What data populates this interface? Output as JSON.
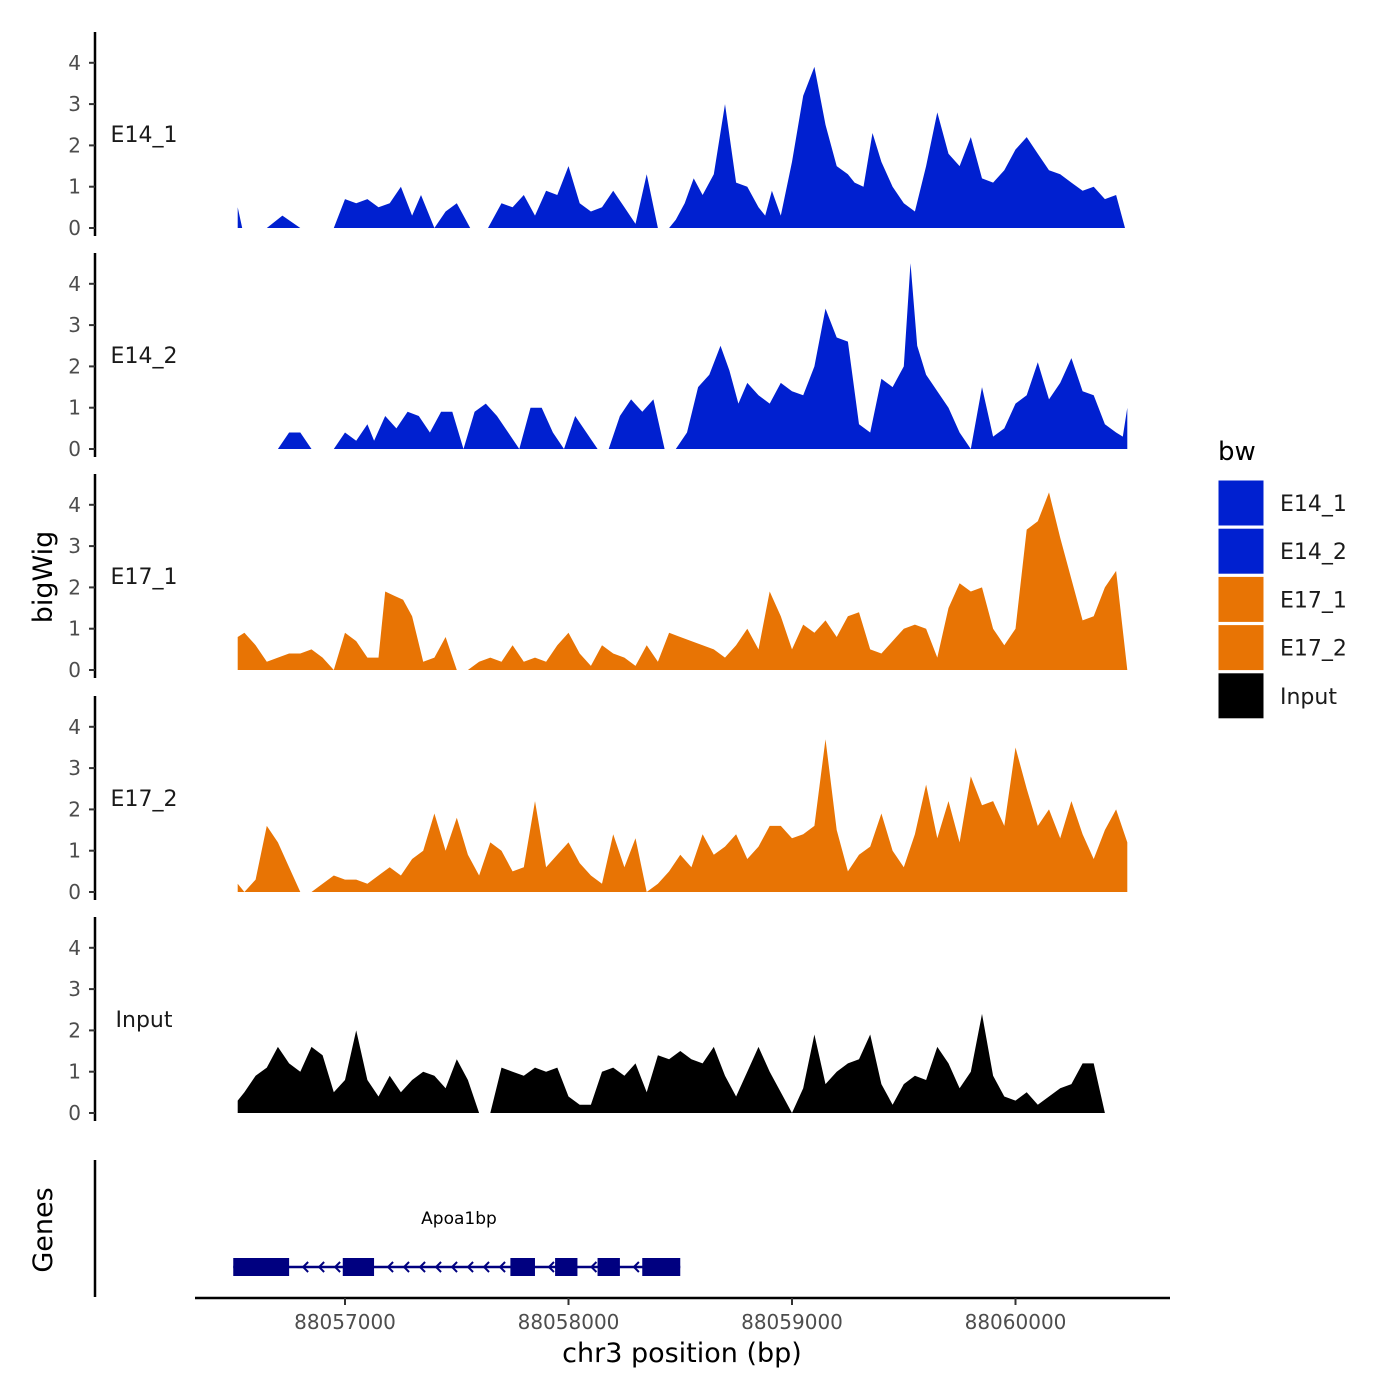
{
  "chart_data": {
    "type": "area",
    "title": "",
    "xlabel": "chr3 position (bp)",
    "ylabel": "bigWig",
    "genes_label": "Genes",
    "x_ticks": [
      88057000,
      88058000,
      88059000,
      88060000
    ],
    "x_tick_labels": [
      "88057000",
      "88058000",
      "88059000",
      "88060000"
    ],
    "xlim": [
      88056300,
      88060700
    ],
    "ylim": [
      0,
      4.6
    ],
    "y_ticks": [
      0,
      1,
      2,
      3,
      4
    ],
    "y_tick_labels": [
      "0",
      "1",
      "2",
      "3",
      "4"
    ],
    "legend": {
      "title": "bw",
      "position": "right",
      "entries": [
        {
          "label": "E14_1",
          "color": "#0020d0"
        },
        {
          "label": "E14_2",
          "color": "#0020d0"
        },
        {
          "label": "E17_1",
          "color": "#e87404"
        },
        {
          "label": "E17_2",
          "color": "#e87404"
        },
        {
          "label": "Input",
          "color": "#000000"
        }
      ]
    },
    "series": [
      {
        "name": "E14_1",
        "label": "E14_1",
        "color": "#0020d0",
        "x": [
          88056520,
          88056540,
          88056650,
          88056720,
          88056800,
          88056870,
          88056950,
          88057000,
          88057050,
          88057100,
          88057150,
          88057200,
          88057250,
          88057300,
          88057340,
          88057400,
          88057450,
          88057500,
          88057560,
          88057600,
          88057640,
          88057700,
          88057750,
          88057800,
          88057850,
          88057900,
          88057950,
          88058000,
          88058050,
          88058100,
          88058150,
          88058200,
          88058250,
          88058300,
          88058350,
          88058400,
          88058450,
          88058480,
          88058520,
          88058560,
          88058600,
          88058650,
          88058700,
          88058750,
          88058800,
          88058850,
          88058880,
          88058910,
          88058950,
          88059000,
          88059050,
          88059100,
          88059150,
          88059200,
          88059250,
          88059280,
          88059320,
          88059360,
          88059400,
          88059450,
          88059500,
          88059550,
          88059600,
          88059650,
          88059700,
          88059750,
          88059800,
          88059850,
          88059900,
          88059950,
          88060000,
          88060050,
          88060100,
          88060150,
          88060200,
          88060250,
          88060300,
          88060350,
          88060400,
          88060450,
          88060490,
          88060500
        ],
        "y": [
          0.5,
          0,
          0,
          0.3,
          0,
          0,
          0,
          0.7,
          0.6,
          0.7,
          0.5,
          0.6,
          1.0,
          0.3,
          0.8,
          0,
          0.4,
          0.6,
          0,
          0,
          0,
          0.6,
          0.5,
          0.8,
          0.3,
          0.9,
          0.8,
          1.5,
          0.6,
          0.4,
          0.5,
          0.9,
          0.5,
          0.1,
          1.3,
          0,
          0,
          0.2,
          0.6,
          1.2,
          0.8,
          1.3,
          3.0,
          1.1,
          1.0,
          0.5,
          0.3,
          0.9,
          0.3,
          1.6,
          3.2,
          3.9,
          2.5,
          1.5,
          1.3,
          1.1,
          1.0,
          2.3,
          1.6,
          1.0,
          0.6,
          0.4,
          1.5,
          2.8,
          1.8,
          1.5,
          2.2,
          1.2,
          1.1,
          1.4,
          1.9,
          2.2,
          1.8,
          1.4,
          1.3,
          1.1,
          0.9,
          1.0,
          0.7,
          0.8,
          0,
          0
        ],
        "x_start": 88056520,
        "x_end": 88060500
      },
      {
        "name": "E14_2",
        "label": "E14_2",
        "color": "#0020d0",
        "x": [
          88056520,
          88056650,
          88056700,
          88056750,
          88056800,
          88056850,
          88056900,
          88056950,
          88057000,
          88057050,
          88057100,
          88057130,
          88057180,
          88057230,
          88057280,
          88057330,
          88057380,
          88057430,
          88057480,
          88057530,
          88057580,
          88057630,
          88057680,
          88057730,
          88057780,
          88057830,
          88057880,
          88057930,
          88057980,
          88058030,
          88058080,
          88058130,
          88058180,
          88058230,
          88058280,
          88058330,
          88058380,
          88058430,
          88058480,
          88058530,
          88058580,
          88058630,
          88058680,
          88058720,
          88058760,
          88058800,
          88058850,
          88058900,
          88058950,
          88059000,
          88059050,
          88059100,
          88059150,
          88059200,
          88059250,
          88059300,
          88059350,
          88059400,
          88059450,
          88059500,
          88059530,
          88059560,
          88059600,
          88059650,
          88059700,
          88059750,
          88059800,
          88059850,
          88059900,
          88059950,
          88060000,
          88060050,
          88060100,
          88060150,
          88060200,
          88060250,
          88060300,
          88060350,
          88060400,
          88060450,
          88060480,
          88060500
        ],
        "y": [
          0,
          0,
          0,
          0.4,
          0.4,
          0,
          0,
          0,
          0.4,
          0.2,
          0.6,
          0.2,
          0.8,
          0.5,
          0.9,
          0.8,
          0.4,
          0.9,
          0.9,
          0,
          0.9,
          1.1,
          0.8,
          0.4,
          0,
          1.0,
          1.0,
          0.4,
          0,
          0.8,
          0.4,
          0,
          0,
          0.8,
          1.2,
          0.9,
          1.2,
          0,
          0,
          0.4,
          1.5,
          1.8,
          2.5,
          1.9,
          1.1,
          1.6,
          1.3,
          1.1,
          1.6,
          1.4,
          1.3,
          2.0,
          3.4,
          2.7,
          2.6,
          0.6,
          0.4,
          1.7,
          1.5,
          2.0,
          4.5,
          2.5,
          1.8,
          1.4,
          1.0,
          0.4,
          0,
          1.5,
          0.3,
          0.5,
          1.1,
          1.3,
          2.1,
          1.2,
          1.6,
          2.2,
          1.4,
          1.3,
          0.6,
          0.4,
          0.3,
          1.0
        ]
      },
      {
        "name": "E17_1",
        "label": "E17_1",
        "color": "#e87404",
        "x": [
          88056520,
          88056550,
          88056600,
          88056650,
          88056700,
          88056750,
          88056800,
          88056850,
          88056900,
          88056950,
          88057000,
          88057050,
          88057100,
          88057150,
          88057180,
          88057220,
          88057260,
          88057300,
          88057350,
          88057400,
          88057450,
          88057500,
          88057550,
          88057600,
          88057650,
          88057700,
          88057750,
          88057800,
          88057850,
          88057900,
          88057950,
          88058000,
          88058050,
          88058100,
          88058150,
          88058200,
          88058250,
          88058300,
          88058350,
          88058400,
          88058450,
          88058500,
          88058550,
          88058600,
          88058650,
          88058700,
          88058750,
          88058800,
          88058850,
          88058900,
          88058950,
          88059000,
          88059050,
          88059100,
          88059150,
          88059200,
          88059250,
          88059300,
          88059350,
          88059400,
          88059450,
          88059500,
          88059550,
          88059600,
          88059650,
          88059700,
          88059750,
          88059800,
          88059850,
          88059900,
          88059950,
          88060000,
          88060050,
          88060100,
          88060150,
          88060200,
          88060250,
          88060300,
          88060350,
          88060400,
          88060450,
          88060500
        ],
        "y": [
          0.8,
          0.9,
          0.6,
          0.2,
          0.3,
          0.4,
          0.4,
          0.5,
          0.3,
          0,
          0.9,
          0.7,
          0.3,
          0.3,
          1.9,
          1.8,
          1.7,
          1.3,
          0.2,
          0.3,
          0.8,
          0,
          0,
          0.2,
          0.3,
          0.2,
          0.6,
          0.2,
          0.3,
          0.2,
          0.6,
          0.9,
          0.4,
          0.1,
          0.6,
          0.4,
          0.3,
          0.1,
          0.6,
          0.2,
          0.9,
          0.8,
          0.7,
          0.6,
          0.5,
          0.3,
          0.6,
          1.0,
          0.5,
          1.9,
          1.3,
          0.5,
          1.1,
          0.9,
          1.2,
          0.8,
          1.3,
          1.4,
          0.5,
          0.4,
          0.7,
          1.0,
          1.1,
          1.0,
          0.3,
          1.5,
          2.1,
          1.9,
          2.0,
          1.0,
          0.6,
          1.0,
          3.4,
          3.6,
          4.3,
          3.2,
          2.2,
          1.2,
          1.3,
          2.0,
          2.4,
          0
        ],
        "x_start": 88056520,
        "x_end": 88060500
      },
      {
        "name": "E17_2",
        "label": "E17_2",
        "color": "#e87404",
        "x": [
          88056520,
          88056550,
          88056600,
          88056650,
          88056700,
          88056750,
          88056800,
          88056850,
          88056900,
          88056950,
          88057000,
          88057050,
          88057100,
          88057150,
          88057200,
          88057250,
          88057300,
          88057350,
          88057400,
          88057450,
          88057500,
          88057550,
          88057600,
          88057650,
          88057700,
          88057750,
          88057800,
          88057850,
          88057900,
          88057950,
          88058000,
          88058050,
          88058100,
          88058150,
          88058200,
          88058250,
          88058300,
          88058350,
          88058400,
          88058450,
          88058500,
          88058550,
          88058600,
          88058650,
          88058700,
          88058750,
          88058800,
          88058850,
          88058900,
          88058950,
          88059000,
          88059050,
          88059100,
          88059150,
          88059200,
          88059250,
          88059300,
          88059350,
          88059400,
          88059450,
          88059500,
          88059550,
          88059600,
          88059650,
          88059700,
          88059750,
          88059800,
          88059850,
          88059900,
          88059950,
          88060000,
          88060050,
          88060100,
          88060150,
          88060200,
          88060250,
          88060300,
          88060350,
          88060400,
          88060450,
          88060500
        ],
        "y": [
          0.2,
          0,
          0.3,
          1.6,
          1.2,
          0.6,
          0,
          0,
          0.2,
          0.4,
          0.3,
          0.3,
          0.2,
          0.4,
          0.6,
          0.4,
          0.8,
          1.0,
          1.9,
          1.0,
          1.8,
          0.9,
          0.4,
          1.2,
          1.0,
          0.5,
          0.6,
          2.2,
          0.6,
          0.9,
          1.2,
          0.7,
          0.4,
          0.2,
          1.4,
          0.6,
          1.3,
          0,
          0.2,
          0.5,
          0.9,
          0.6,
          1.4,
          0.9,
          1.1,
          1.4,
          0.8,
          1.1,
          1.6,
          1.6,
          1.3,
          1.4,
          1.6,
          3.7,
          1.5,
          0.5,
          0.9,
          1.1,
          1.9,
          1.0,
          0.6,
          1.4,
          2.6,
          1.3,
          2.2,
          1.2,
          2.8,
          2.1,
          2.2,
          1.6,
          3.5,
          2.5,
          1.6,
          2.0,
          1.3,
          2.2,
          1.4,
          0.8,
          1.5,
          2.0,
          1.2
        ],
        "x_start": 88056520,
        "x_end": 88060500
      },
      {
        "name": "Input",
        "label": "Input",
        "color": "#000000",
        "x": [
          88056520,
          88056550,
          88056600,
          88056650,
          88056700,
          88056750,
          88056800,
          88056850,
          88056900,
          88056950,
          88057000,
          88057050,
          88057100,
          88057150,
          88057200,
          88057250,
          88057300,
          88057350,
          88057400,
          88057450,
          88057500,
          88057550,
          88057600,
          88057650,
          88057700,
          88057750,
          88057800,
          88057850,
          88057900,
          88057950,
          88058000,
          88058050,
          88058100,
          88058150,
          88058200,
          88058250,
          88058300,
          88058350,
          88058400,
          88058450,
          88058500,
          88058550,
          88058600,
          88058650,
          88058700,
          88058750,
          88058800,
          88058850,
          88058900,
          88058950,
          88059000,
          88059050,
          88059100,
          88059150,
          88059200,
          88059250,
          88059300,
          88059350,
          88059400,
          88059450,
          88059500,
          88059550,
          88059600,
          88059650,
          88059700,
          88059750,
          88059800,
          88059850,
          88059900,
          88059950,
          88060000,
          88060050,
          88060100,
          88060150,
          88060200,
          88060250,
          88060300,
          88060350,
          88060400,
          88060450,
          88060500,
          88060520
        ],
        "y": [
          0.3,
          0.5,
          0.9,
          1.1,
          1.6,
          1.2,
          1.0,
          1.6,
          1.4,
          0.5,
          0.8,
          2.0,
          0.8,
          0.4,
          0.9,
          0.5,
          0.8,
          1.0,
          0.9,
          0.6,
          1.3,
          0.8,
          0,
          0,
          1.1,
          1.0,
          0.9,
          1.1,
          1.0,
          1.1,
          0.4,
          0.2,
          0.2,
          1.0,
          1.1,
          0.9,
          1.2,
          0.5,
          1.4,
          1.3,
          1.5,
          1.3,
          1.2,
          1.6,
          0.9,
          0.4,
          1.0,
          1.6,
          1.0,
          0.5,
          0,
          0.6,
          1.9,
          0.7,
          1.0,
          1.2,
          1.3,
          1.9,
          0.7,
          0.2,
          0.7,
          0.9,
          0.8,
          1.6,
          1.2,
          0.6,
          1.0,
          2.4,
          0.9,
          0.4,
          0.3,
          0.5,
          0.2,
          0.4,
          0.6,
          0.7,
          1.2,
          1.2,
          0,
          0,
          0,
          0
        ]
      }
    ],
    "genes": [
      {
        "name": "Apoa1bp",
        "strand": "-",
        "start": 88056500,
        "end": 88058500,
        "exons": [
          [
            88056500,
            88056750
          ],
          [
            88056990,
            88057130
          ],
          [
            88057740,
            88057850
          ],
          [
            88057940,
            88058040
          ],
          [
            88058130,
            88058230
          ],
          [
            88058330,
            88058500
          ]
        ]
      }
    ]
  }
}
